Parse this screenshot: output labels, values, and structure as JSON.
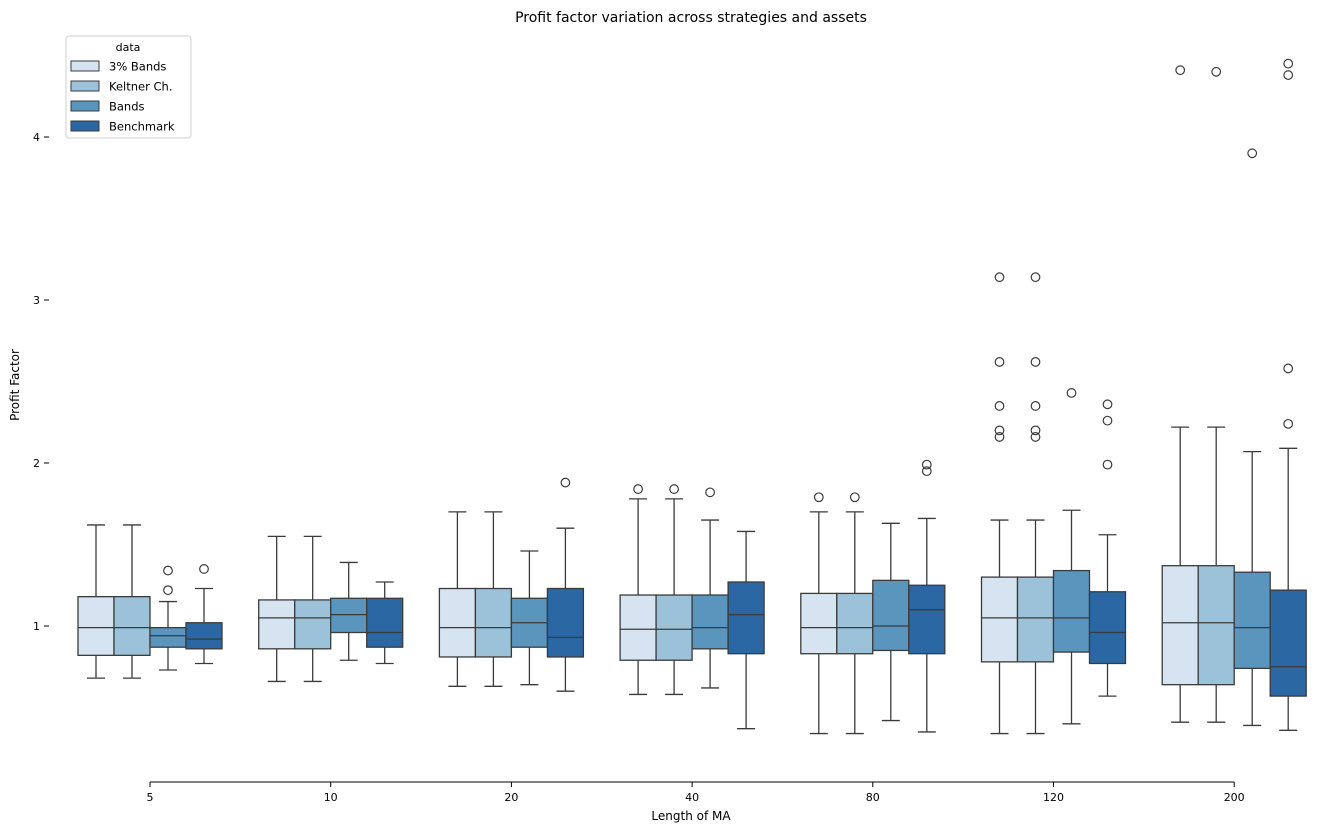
{
  "chart_data": {
    "type": "box",
    "title": "Profit factor variation across strategies and assets",
    "xlabel": "Length of MA",
    "ylabel": "Profit Factor",
    "categories": [
      "5",
      "10",
      "20",
      "40",
      "80",
      "120",
      "200"
    ],
    "yticks": [
      "1",
      "2",
      "3",
      "4"
    ],
    "ylim": [
      0.0,
      4.6
    ],
    "grid": false,
    "legend": {
      "title": "data",
      "placement": "top-left"
    },
    "series": [
      {
        "name": "3% Bands",
        "color": "#d6e4f2",
        "boxes": [
          {
            "whislo": 0.68,
            "q1": 0.82,
            "med": 0.99,
            "q3": 1.18,
            "whishi": 1.62,
            "fliers": []
          },
          {
            "whislo": 0.66,
            "q1": 0.86,
            "med": 1.05,
            "q3": 1.16,
            "whishi": 1.55,
            "fliers": []
          },
          {
            "whislo": 0.63,
            "q1": 0.81,
            "med": 0.99,
            "q3": 1.23,
            "whishi": 1.7,
            "fliers": []
          },
          {
            "whislo": 0.58,
            "q1": 0.79,
            "med": 0.98,
            "q3": 1.19,
            "whishi": 1.78,
            "fliers": [
              1.84
            ]
          },
          {
            "whislo": 0.34,
            "q1": 0.83,
            "med": 0.99,
            "q3": 1.2,
            "whishi": 1.7,
            "fliers": [
              1.79
            ]
          },
          {
            "whislo": 0.34,
            "q1": 0.78,
            "med": 1.05,
            "q3": 1.3,
            "whishi": 1.65,
            "fliers": [
              2.16,
              2.2,
              2.35,
              2.62,
              3.14
            ]
          },
          {
            "whislo": 0.41,
            "q1": 0.64,
            "med": 1.02,
            "q3": 1.37,
            "whishi": 2.22,
            "fliers": [
              4.41
            ]
          }
        ]
      },
      {
        "name": "Keltner Ch.",
        "color": "#9bc2d9",
        "boxes": [
          {
            "whislo": 0.68,
            "q1": 0.82,
            "med": 0.99,
            "q3": 1.18,
            "whishi": 1.62,
            "fliers": []
          },
          {
            "whislo": 0.66,
            "q1": 0.86,
            "med": 1.05,
            "q3": 1.16,
            "whishi": 1.55,
            "fliers": []
          },
          {
            "whislo": 0.63,
            "q1": 0.81,
            "med": 0.99,
            "q3": 1.23,
            "whishi": 1.7,
            "fliers": []
          },
          {
            "whislo": 0.58,
            "q1": 0.79,
            "med": 0.98,
            "q3": 1.19,
            "whishi": 1.78,
            "fliers": [
              1.84
            ]
          },
          {
            "whislo": 0.34,
            "q1": 0.83,
            "med": 0.99,
            "q3": 1.2,
            "whishi": 1.7,
            "fliers": [
              1.79
            ]
          },
          {
            "whislo": 0.34,
            "q1": 0.78,
            "med": 1.05,
            "q3": 1.3,
            "whishi": 1.65,
            "fliers": [
              2.16,
              2.2,
              2.35,
              2.62,
              3.14
            ]
          },
          {
            "whislo": 0.41,
            "q1": 0.64,
            "med": 1.02,
            "q3": 1.37,
            "whishi": 2.22,
            "fliers": [
              4.4
            ]
          }
        ]
      },
      {
        "name": "Bands",
        "color": "#5a95be",
        "boxes": [
          {
            "whislo": 0.73,
            "q1": 0.87,
            "med": 0.94,
            "q3": 0.99,
            "whishi": 1.15,
            "fliers": [
              1.22,
              1.34
            ]
          },
          {
            "whislo": 0.79,
            "q1": 0.96,
            "med": 1.07,
            "q3": 1.17,
            "whishi": 1.39,
            "fliers": []
          },
          {
            "whislo": 0.64,
            "q1": 0.87,
            "med": 1.02,
            "q3": 1.17,
            "whishi": 1.46,
            "fliers": []
          },
          {
            "whislo": 0.62,
            "q1": 0.86,
            "med": 0.99,
            "q3": 1.19,
            "whishi": 1.65,
            "fliers": [
              1.82
            ]
          },
          {
            "whislo": 0.42,
            "q1": 0.85,
            "med": 1.0,
            "q3": 1.28,
            "whishi": 1.63,
            "fliers": []
          },
          {
            "whislo": 0.4,
            "q1": 0.84,
            "med": 1.05,
            "q3": 1.34,
            "whishi": 1.71,
            "fliers": [
              2.43
            ]
          },
          {
            "whislo": 0.39,
            "q1": 0.74,
            "med": 0.99,
            "q3": 1.33,
            "whishi": 2.07,
            "fliers": [
              3.9
            ]
          }
        ]
      },
      {
        "name": "Benchmark",
        "color": "#2a67a3",
        "boxes": [
          {
            "whislo": 0.77,
            "q1": 0.86,
            "med": 0.92,
            "q3": 1.02,
            "whishi": 1.23,
            "fliers": [
              1.35
            ]
          },
          {
            "whislo": 0.77,
            "q1": 0.87,
            "med": 0.96,
            "q3": 1.17,
            "whishi": 1.27,
            "fliers": []
          },
          {
            "whislo": 0.6,
            "q1": 0.81,
            "med": 0.93,
            "q3": 1.23,
            "whishi": 1.6,
            "fliers": [
              1.88
            ]
          },
          {
            "whislo": 0.37,
            "q1": 0.83,
            "med": 1.07,
            "q3": 1.27,
            "whishi": 1.58,
            "fliers": []
          },
          {
            "whislo": 0.35,
            "q1": 0.83,
            "med": 1.1,
            "q3": 1.25,
            "whishi": 1.66,
            "fliers": [
              1.95,
              1.99
            ]
          },
          {
            "whislo": 0.57,
            "q1": 0.77,
            "med": 0.96,
            "q3": 1.21,
            "whishi": 1.56,
            "fliers": [
              1.99,
              2.26,
              2.36
            ]
          },
          {
            "whislo": 0.36,
            "q1": 0.57,
            "med": 0.75,
            "q3": 1.22,
            "whishi": 2.09,
            "fliers": [
              2.24,
              2.58,
              4.38,
              4.45
            ]
          }
        ]
      }
    ]
  }
}
